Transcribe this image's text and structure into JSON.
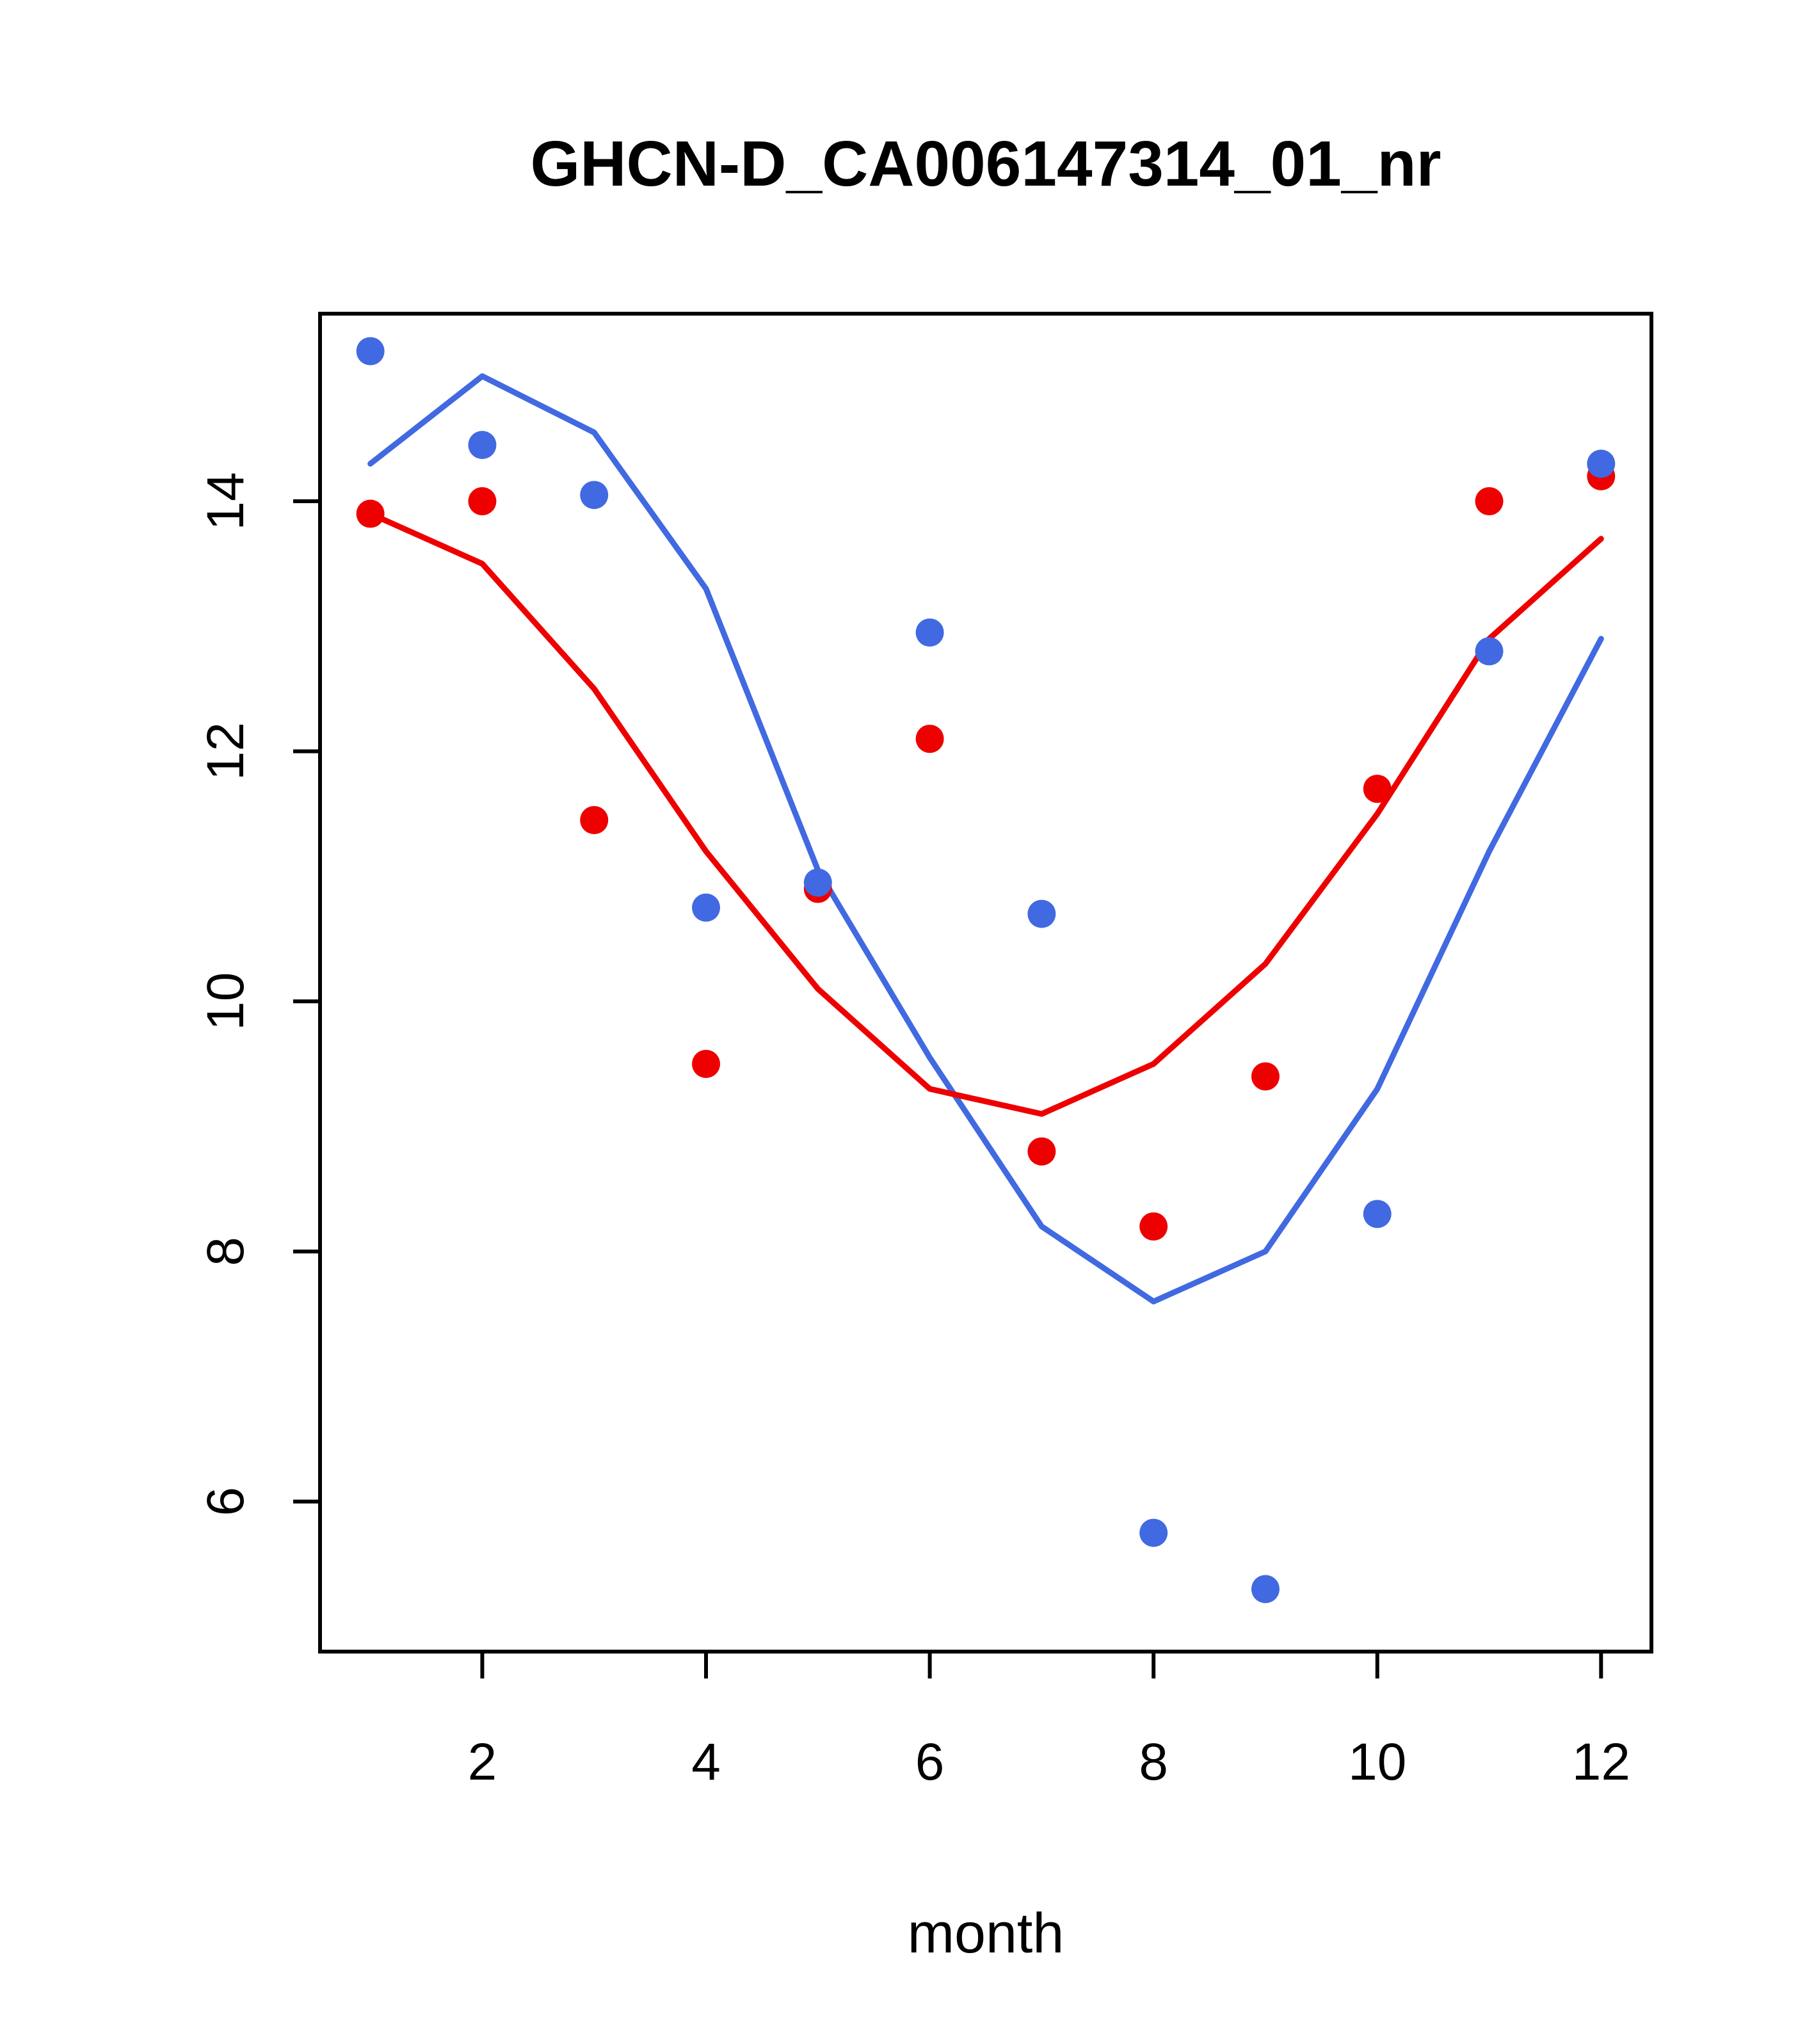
{
  "page": {
    "background": "#ffffff"
  },
  "chart_data": {
    "type": "scatter",
    "title": "GHCN-D_CA006147314_01_nr",
    "xlabel": "month",
    "ylabel": "",
    "xlim": [
      0.55,
      12.45
    ],
    "ylim": [
      4.8,
      15.5
    ],
    "x_ticks": [
      2,
      4,
      6,
      8,
      10,
      12
    ],
    "y_ticks": [
      6,
      8,
      10,
      12,
      14
    ],
    "grid": "off",
    "legend": "none",
    "x": [
      1,
      2,
      3,
      4,
      5,
      6,
      7,
      8,
      9,
      10,
      11,
      12
    ],
    "colors": {
      "blue": "#4169e1",
      "red": "#ee0000",
      "axis": "#000000"
    },
    "series": [
      {
        "name": "blue-line",
        "kind": "line",
        "color": "#4169e1",
        "values": [
          14.3,
          15.0,
          14.55,
          13.3,
          11.05,
          9.55,
          8.2,
          7.6,
          8.0,
          9.3,
          11.2,
          12.9
        ]
      },
      {
        "name": "red-line",
        "kind": "line",
        "color": "#ee0000",
        "values": [
          13.9,
          13.5,
          12.5,
          11.2,
          10.1,
          9.3,
          9.1,
          9.5,
          10.3,
          11.5,
          12.9,
          13.7
        ]
      },
      {
        "name": "red-points",
        "kind": "points",
        "color": "#ee0000",
        "values": [
          13.9,
          14.0,
          11.45,
          9.5,
          10.9,
          12.1,
          8.8,
          8.2,
          9.4,
          11.7,
          14.0,
          14.2
        ]
      },
      {
        "name": "blue-points",
        "kind": "points",
        "color": "#4169e1",
        "values": [
          15.2,
          14.45,
          14.05,
          10.75,
          10.95,
          12.95,
          10.7,
          5.75,
          5.3,
          8.3,
          12.8,
          14.3
        ]
      }
    ]
  }
}
